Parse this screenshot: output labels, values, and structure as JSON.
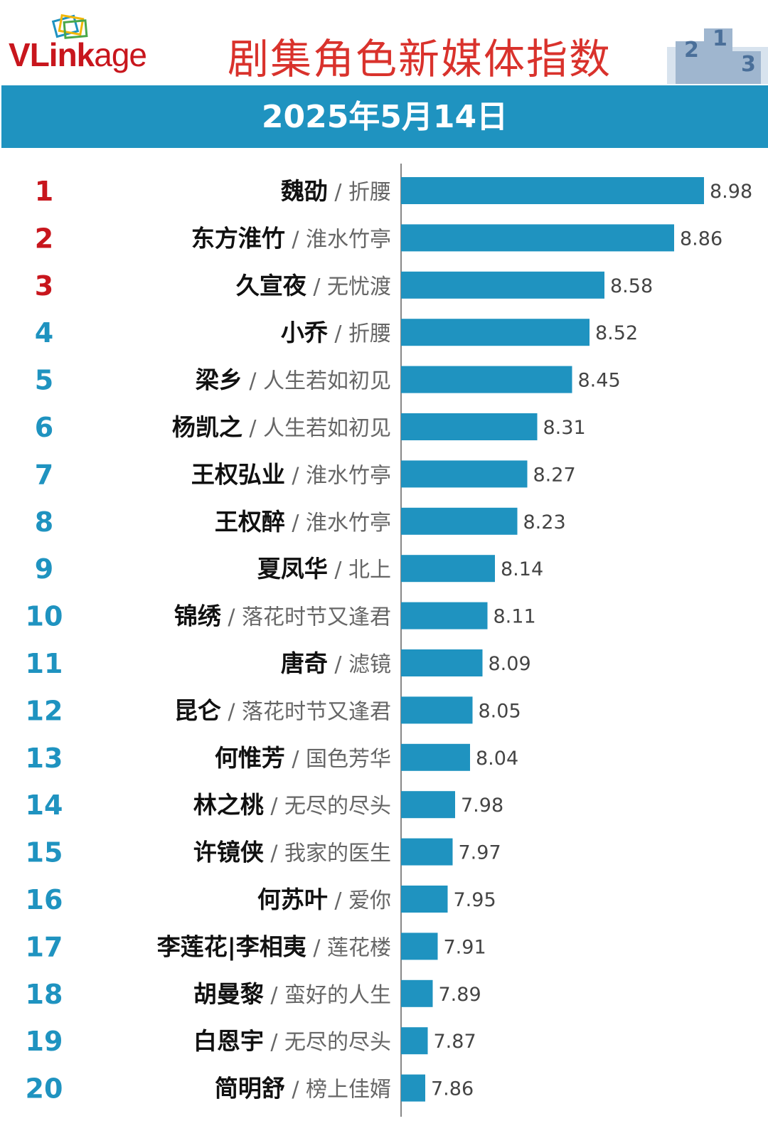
{
  "brand": {
    "logo_v": "V",
    "logo_rest": "Link",
    "logo_suffix": "age"
  },
  "title": "剧集角色新媒体指数",
  "date": "2025年5月14日",
  "podium_labels": [
    "2",
    "1",
    "3"
  ],
  "colors": {
    "bar": "#1f93c0",
    "top_rank": "#c8161d",
    "rank": "#1f93c0",
    "title": "#d9322c"
  },
  "chart_data": {
    "type": "bar",
    "orientation": "horizontal",
    "grid": false,
    "xlim": [
      0,
      9
    ],
    "ranks": [
      "1",
      "2",
      "3",
      "4",
      "5",
      "6",
      "7",
      "8",
      "9",
      "10",
      "11",
      "12",
      "13",
      "14",
      "15",
      "16",
      "17",
      "18",
      "19",
      "20"
    ],
    "names": [
      "魏劭",
      "东方淮竹",
      "久宣夜",
      "小乔",
      "梁乡",
      "杨凯之",
      "王权弘业",
      "王权醉",
      "夏凤华",
      "锦绣",
      "唐奇",
      "昆仑",
      "何惟芳",
      "林之桃",
      "许镜侠",
      "何苏叶",
      "李莲花|李相夷",
      "胡曼黎",
      "白恩宇",
      "简明舒"
    ],
    "shows": [
      "折腰",
      "淮水竹亭",
      "无忧渡",
      "折腰",
      "人生若如初见",
      "人生若如初见",
      "淮水竹亭",
      "淮水竹亭",
      "北上",
      "落花时节又逢君",
      "滤镜",
      "落花时节又逢君",
      "国色芳华",
      "无尽的尽头",
      "我家的医生",
      "爱你",
      "莲花楼",
      "蛮好的人生",
      "无尽的尽头",
      "榜上佳婿"
    ],
    "values": [
      8.98,
      8.86,
      8.58,
      8.52,
      8.45,
      8.31,
      8.27,
      8.23,
      8.14,
      8.11,
      8.09,
      8.05,
      8.04,
      7.98,
      7.97,
      7.95,
      7.91,
      7.89,
      7.87,
      7.86
    ],
    "value_labels": [
      "8.98",
      "8.86",
      "8.58",
      "8.52",
      "8.45",
      "8.31",
      "8.27",
      "8.23",
      "8.14",
      "8.11",
      "8.09",
      "8.05",
      "8.04",
      "7.98",
      "7.97",
      "7.95",
      "7.91",
      "7.89",
      "7.87",
      "7.86"
    ]
  }
}
